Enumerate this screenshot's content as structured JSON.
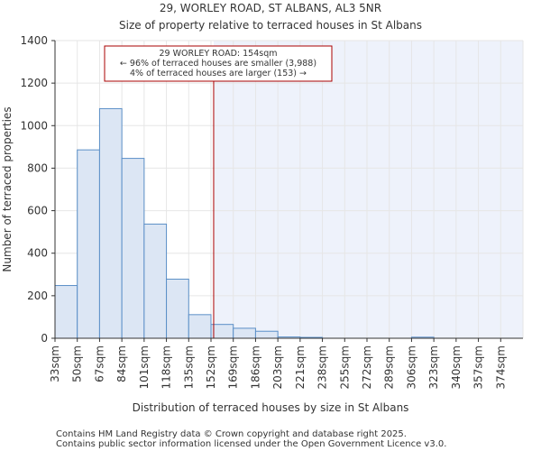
{
  "chart_data": {
    "type": "bar",
    "title": "29, WORLEY ROAD, ST ALBANS, AL3 5NR",
    "subtitle": "Size of property relative to terraced houses in St Albans",
    "xlabel": "Distribution of terraced houses by size in St Albans",
    "ylabel": "Number of terraced properties",
    "ylim": [
      0,
      1400
    ],
    "yticks": [
      "0",
      "200",
      "400",
      "600",
      "800",
      "1000",
      "1200",
      "1400"
    ],
    "categories": [
      "33sqm",
      "50sqm",
      "67sqm",
      "84sqm",
      "101sqm",
      "118sqm",
      "135sqm",
      "152sqm",
      "169sqm",
      "186sqm",
      "203sqm",
      "221sqm",
      "238sqm",
      "255sqm",
      "272sqm",
      "289sqm",
      "306sqm",
      "323sqm",
      "340sqm",
      "357sqm",
      "374sqm"
    ],
    "values": [
      248,
      886,
      1080,
      846,
      537,
      278,
      111,
      65,
      47,
      33,
      6,
      4,
      0,
      0,
      0,
      0,
      5,
      0,
      0,
      0,
      0
    ],
    "property_size_sqm": 154,
    "property_bin_position": 7.12,
    "highlight_from_bin": 7.12,
    "annotation": {
      "line1": "29 WORLEY ROAD: 154sqm",
      "line2": "← 96% of terraced houses are smaller (3,988)",
      "line3": "4% of terraced houses are larger (153) →"
    },
    "colors": {
      "bar_fill": "#dce6f4",
      "bar_stroke": "#5b8fc7",
      "highlight_bg": "#eef2fb",
      "marker_line": "#aa0000",
      "axis": "#333333",
      "grid": "#e6e6e6"
    },
    "grid": true
  },
  "footer": {
    "line1": "Contains HM Land Registry data © Crown copyright and database right 2025.",
    "line2": "Contains public sector information licensed under the Open Government Licence v3.0."
  }
}
